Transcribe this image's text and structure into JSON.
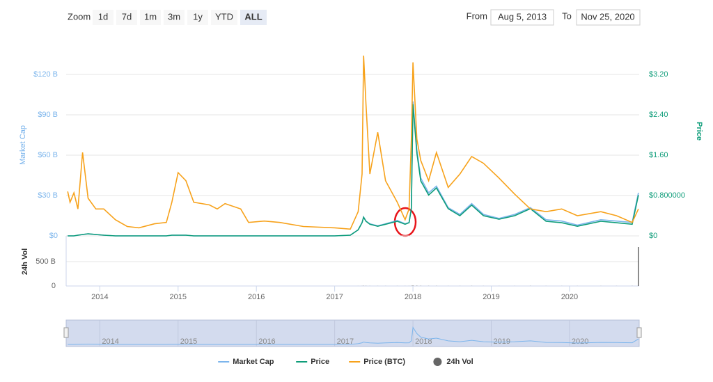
{
  "controls": {
    "zoom_label": "Zoom",
    "buttons": [
      "1d",
      "7d",
      "1m",
      "3m",
      "1y",
      "YTD",
      "ALL"
    ],
    "from_label": "From",
    "from": "Aug 5, 2013",
    "to_label": "To",
    "to": "Nov 25, 2020"
  },
  "chart_data": [
    {
      "type": "line",
      "y_label": "Market Cap",
      "y2_label": "Price",
      "xlim": [
        2013.57,
        2020.89
      ],
      "xticks": [
        2014,
        2015,
        2016,
        2017,
        2018,
        2019,
        2020
      ],
      "ylim": [
        0,
        135
      ],
      "yticks": [
        {
          "value": 0,
          "label": "$0"
        },
        {
          "value": 30,
          "label": "$30 B"
        },
        {
          "value": 60,
          "label": "$60 B"
        },
        {
          "value": 90,
          "label": "$90 B"
        },
        {
          "value": 120,
          "label": "$120 B"
        }
      ],
      "y2lim": [
        0,
        3.6
      ],
      "y2ticks": [
        {
          "value": 0,
          "label": "$0"
        },
        {
          "value": 0.8,
          "label": "$0.800000"
        },
        {
          "value": 1.6,
          "label": "$1.60"
        },
        {
          "value": 2.4,
          "label": "$2.40"
        },
        {
          "value": 3.2,
          "label": "$3.20"
        }
      ],
      "grid": true,
      "x": [
        2013.59,
        2013.62,
        2013.67,
        2013.72,
        2013.78,
        2013.85,
        2013.95,
        2014.05,
        2014.2,
        2014.35,
        2014.5,
        2014.7,
        2014.85,
        2014.92,
        2015.0,
        2015.1,
        2015.2,
        2015.4,
        2015.5,
        2015.6,
        2015.8,
        2015.9,
        2016.1,
        2016.3,
        2016.6,
        2017.0,
        2017.2,
        2017.3,
        2017.35,
        2017.37,
        2017.4,
        2017.45,
        2017.55,
        2017.65,
        2017.8,
        2017.9,
        2017.95,
        2017.98,
        2018.0,
        2018.05,
        2018.1,
        2018.2,
        2018.3,
        2018.45,
        2018.6,
        2018.75,
        2018.9,
        2019.1,
        2019.3,
        2019.5,
        2019.7,
        2019.9,
        2020.1,
        2020.4,
        2020.6,
        2020.8,
        2020.88
      ],
      "series": [
        {
          "name": "Market Cap",
          "color": "#7cb5ec",
          "values": [
            0,
            0,
            0,
            0.5,
            1,
            1.5,
            1,
            0.5,
            0,
            0,
            0,
            0,
            0,
            0.5,
            0.5,
            0.5,
            0,
            0,
            0,
            0,
            0,
            0,
            0,
            0,
            0,
            0,
            0.5,
            4.5,
            10,
            14,
            11,
            9,
            7.5,
            9,
            11.5,
            9,
            10,
            21,
            100,
            64,
            43,
            32,
            37,
            21,
            16,
            24,
            16,
            13,
            16,
            21,
            12,
            11,
            8,
            12,
            11,
            10,
            32
          ]
        },
        {
          "name": "Price",
          "color": "#0f9d7a",
          "axis": "y2",
          "values": [
            0,
            0,
            0,
            0.014,
            0.028,
            0.041,
            0.028,
            0.014,
            0,
            0,
            0,
            0,
            0,
            0.014,
            0.014,
            0.014,
            0,
            0,
            0,
            0,
            0,
            0,
            0,
            0,
            0,
            0,
            0.014,
            0.12,
            0.26,
            0.37,
            0.29,
            0.23,
            0.19,
            0.23,
            0.29,
            0.23,
            0.26,
            0.54,
            2.61,
            1.64,
            1.09,
            0.81,
            0.95,
            0.54,
            0.4,
            0.61,
            0.4,
            0.33,
            0.4,
            0.54,
            0.29,
            0.26,
            0.19,
            0.29,
            0.26,
            0.23,
            0.81
          ]
        },
        {
          "name": "Price (BTC)",
          "color": "#f7a21b",
          "values": [
            33,
            25,
            32,
            20,
            62,
            28,
            20,
            20,
            12,
            7,
            6,
            9,
            10,
            25,
            47,
            41,
            25,
            23,
            20,
            24,
            20,
            10,
            11,
            10,
            7,
            6,
            5,
            18,
            46,
            134,
            98,
            46,
            77,
            41,
            25,
            12,
            20,
            72,
            129,
            72,
            56,
            41,
            62,
            36,
            46,
            59,
            54,
            43,
            31,
            20,
            18,
            20,
            15,
            18,
            15,
            10,
            20
          ]
        }
      ]
    },
    {
      "type": "bar",
      "y_label": "24h Vol",
      "ylim": [
        0,
        1000
      ],
      "yticks": [
        0,
        {
          "value": 500,
          "label": "500 B"
        }
      ],
      "series": [
        {
          "name": "24h Vol",
          "color": "#666666",
          "values": [
            0,
            0,
            0,
            0,
            0,
            0,
            0,
            0,
            0,
            0,
            0,
            0,
            0,
            0,
            0,
            0,
            0,
            0,
            0,
            0,
            0,
            0,
            0,
            0,
            0,
            0,
            0,
            0.5,
            1,
            3,
            2,
            1,
            1,
            1,
            1,
            1,
            1,
            3,
            8,
            5,
            3,
            2,
            2,
            1,
            1,
            2,
            1,
            1,
            1,
            2,
            1,
            1,
            1,
            1,
            1,
            2,
            800
          ]
        }
      ]
    }
  ]
}
